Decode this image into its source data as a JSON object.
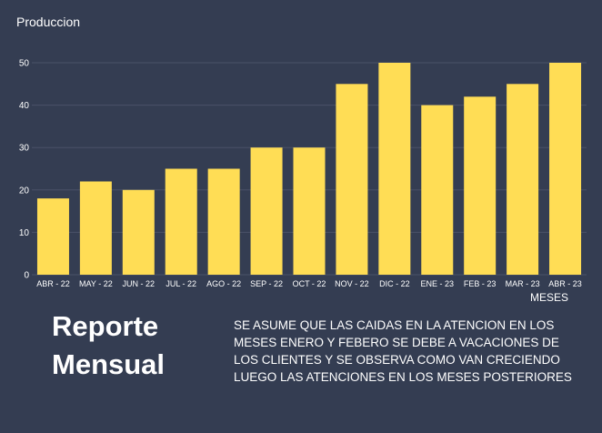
{
  "chart_data": {
    "type": "bar",
    "title": "Produccion",
    "xlabel": "MESES",
    "ylabel": "",
    "categories": [
      "ABR - 22",
      "MAY - 22",
      "JUN - 22",
      "JUL - 22",
      "AGO - 22",
      "SEP - 22",
      "OCT - 22",
      "NOV - 22",
      "DIC - 22",
      "ENE - 23",
      "FEB - 23",
      "MAR - 23",
      "ABR - 23"
    ],
    "values": [
      18,
      22,
      20,
      25,
      25,
      30,
      30,
      45,
      50,
      40,
      42,
      45,
      50
    ],
    "ylim": [
      0,
      50
    ],
    "yticks": [
      0,
      10,
      20,
      30,
      40,
      50
    ],
    "grid": true,
    "bar_color": "#ffdd55"
  },
  "report": {
    "title_line1": "Reporte",
    "title_line2": "Mensual",
    "note": "SE ASUME QUE LAS CAIDAS EN LA ATENCION EN LOS MESES ENERO Y FEBERO SE DEBE A VACACIONES DE LOS CLIENTES Y SE OBSERVA COMO VAN CRECIENDO LUEGO LAS ATENCIONES EN LOS MESES POSTERIORES"
  },
  "colors": {
    "background": "#343d52",
    "grid": "#4a5268",
    "text": "#ffffff"
  }
}
